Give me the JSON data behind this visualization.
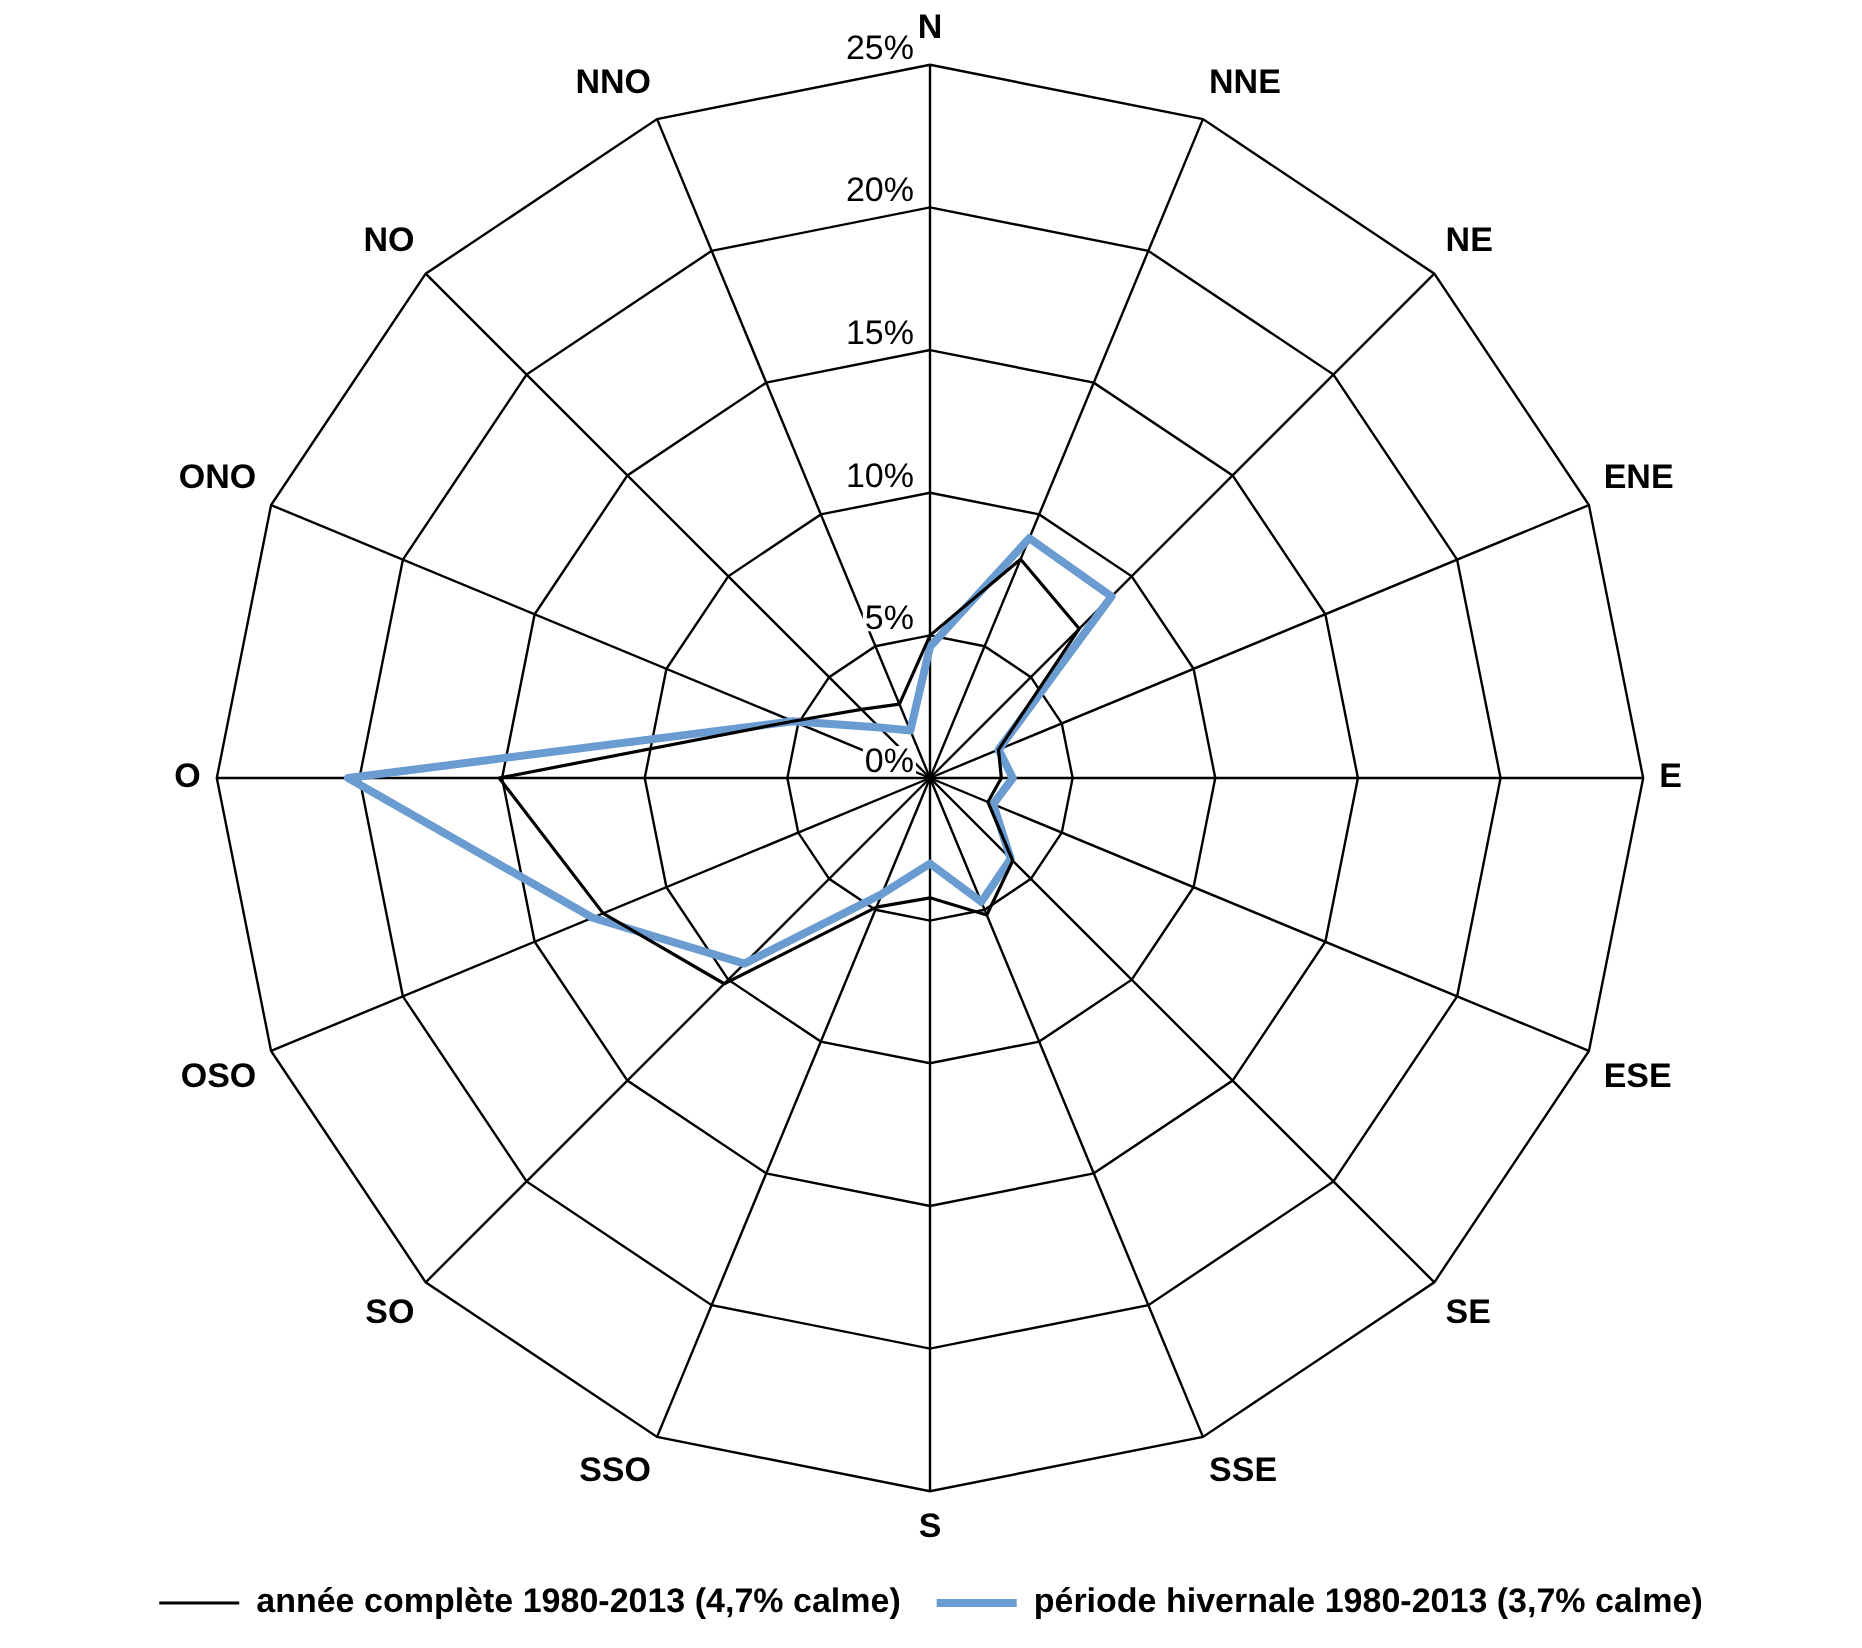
{
  "chart_data": {
    "type": "radar",
    "categories": [
      "N",
      "NNE",
      "NE",
      "ENE",
      "E",
      "ESE",
      "SE",
      "SSE",
      "S",
      "SSO",
      "SO",
      "OSO",
      "O",
      "ONO",
      "NO",
      "NNO"
    ],
    "series": [
      {
        "name": "année complète 1980-2013 (4,7% calme)",
        "color": "#000000",
        "values": [
          5.0,
          8.3,
          7.4,
          2.6,
          2.5,
          2.2,
          4.1,
          5.2,
          4.2,
          4.9,
          10.2,
          12.4,
          15.1,
          5.2,
          3.4,
          2.8
        ]
      },
      {
        "name": "période hivernale 1980-2013 (3,7% calme)",
        "color": "#6a9bd1",
        "values": [
          4.6,
          9.1,
          9.0,
          2.6,
          2.9,
          2.4,
          4.0,
          4.7,
          3.0,
          4.4,
          9.2,
          12.8,
          20.4,
          5.2,
          2.5,
          1.8
        ]
      }
    ],
    "ylim": [
      0,
      25
    ],
    "yticks": [
      {
        "value": 0,
        "label": "0%"
      },
      {
        "value": 5,
        "label": "5%"
      },
      {
        "value": 10,
        "label": "10%"
      },
      {
        "value": 15,
        "label": "15%"
      },
      {
        "value": 20,
        "label": "20%"
      },
      {
        "value": 25,
        "label": "25%"
      }
    ],
    "grid": true,
    "legend": "bottom",
    "marker": "none",
    "line_style": "solid"
  }
}
